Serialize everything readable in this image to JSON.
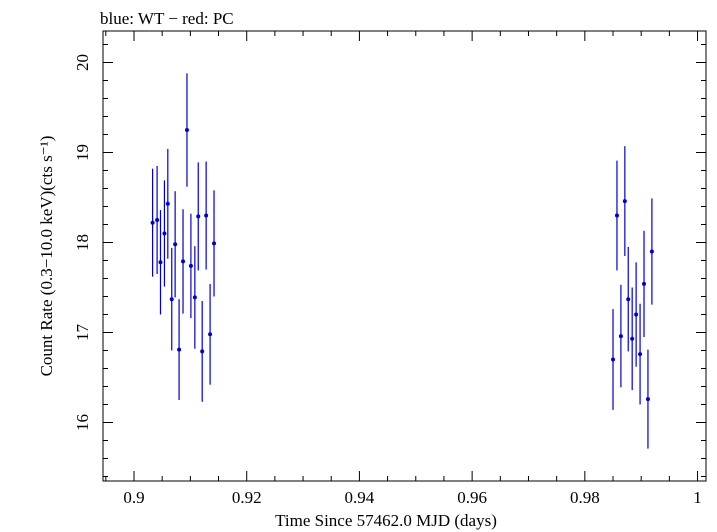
{
  "chart_data": {
    "type": "scatter",
    "title": "blue: WT − red: PC",
    "xlabel": "Time Since 57462.0 MJD (days)",
    "ylabel": "Count Rate (0.3−10.0 keV)(cts s⁻¹)",
    "xlim": [
      0.8945,
      1.0015
    ],
    "ylim": [
      15.35,
      20.35
    ],
    "xticks": [
      0.9,
      0.92,
      0.94,
      0.96,
      0.98,
      1.0
    ],
    "xtick_labels": [
      "0.9",
      "0.92",
      "0.94",
      "0.96",
      "0.98",
      "1"
    ],
    "yticks": [
      16,
      17,
      18,
      19,
      20
    ],
    "ytick_labels": [
      "16",
      "17",
      "18",
      "19",
      "20"
    ],
    "grid": false,
    "series": [
      {
        "color": "#0000cc",
        "points": [
          {
            "x": 0.9033,
            "y": 18.22,
            "err": 0.6
          },
          {
            "x": 0.9041,
            "y": 18.25,
            "err": 0.6
          },
          {
            "x": 0.9047,
            "y": 17.78,
            "err": 0.58
          },
          {
            "x": 0.9054,
            "y": 18.1,
            "err": 0.59
          },
          {
            "x": 0.906,
            "y": 18.43,
            "err": 0.61
          },
          {
            "x": 0.9067,
            "y": 17.37,
            "err": 0.57
          },
          {
            "x": 0.9073,
            "y": 17.98,
            "err": 0.59
          },
          {
            "x": 0.908,
            "y": 16.81,
            "err": 0.56
          },
          {
            "x": 0.9087,
            "y": 17.79,
            "err": 0.58
          },
          {
            "x": 0.9094,
            "y": 19.25,
            "err": 0.63
          },
          {
            "x": 0.9101,
            "y": 17.74,
            "err": 0.58
          },
          {
            "x": 0.9108,
            "y": 17.39,
            "err": 0.57
          },
          {
            "x": 0.9114,
            "y": 18.29,
            "err": 0.6
          },
          {
            "x": 0.9121,
            "y": 16.79,
            "err": 0.56
          },
          {
            "x": 0.9128,
            "y": 18.3,
            "err": 0.6
          },
          {
            "x": 0.9135,
            "y": 16.98,
            "err": 0.56
          },
          {
            "x": 0.9142,
            "y": 17.99,
            "err": 0.59
          },
          {
            "x": 0.985,
            "y": 16.7,
            "err": 0.56
          },
          {
            "x": 0.9857,
            "y": 18.3,
            "err": 0.61
          },
          {
            "x": 0.9864,
            "y": 16.96,
            "err": 0.57
          },
          {
            "x": 0.9871,
            "y": 18.46,
            "err": 0.61
          },
          {
            "x": 0.9877,
            "y": 17.37,
            "err": 0.58
          },
          {
            "x": 0.9884,
            "y": 16.93,
            "err": 0.57
          },
          {
            "x": 0.9891,
            "y": 17.2,
            "err": 0.58
          },
          {
            "x": 0.9898,
            "y": 16.76,
            "err": 0.56
          },
          {
            "x": 0.9905,
            "y": 17.54,
            "err": 0.59
          },
          {
            "x": 0.9912,
            "y": 16.26,
            "err": 0.55
          },
          {
            "x": 0.9919,
            "y": 17.9,
            "err": 0.59
          }
        ]
      }
    ]
  }
}
